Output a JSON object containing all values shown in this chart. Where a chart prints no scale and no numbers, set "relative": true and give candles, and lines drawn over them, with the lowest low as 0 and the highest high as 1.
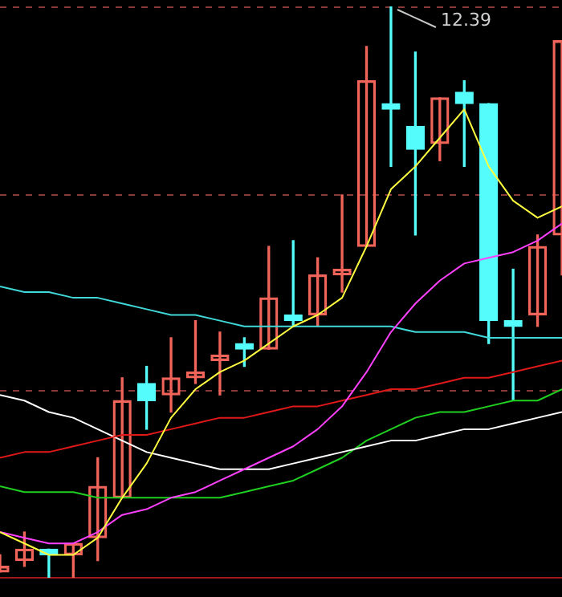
{
  "chart_data": {
    "type": "candlestick",
    "relative": true,
    "tick_labels": false,
    "categories": [
      null,
      null,
      null,
      null,
      null,
      null,
      null,
      null,
      null,
      null,
      null,
      null,
      null,
      null,
      null,
      null,
      null,
      null,
      null,
      null,
      null,
      null,
      null,
      null
    ],
    "ohlc": [
      [
        0.01,
        0.04,
        0.01,
        0.02
      ],
      [
        0.03,
        0.08,
        0.02,
        0.05
      ],
      [
        0.05,
        0.05,
        0,
        0.04
      ],
      [
        0.04,
        0.06,
        0,
        0.06
      ],
      [
        0.07,
        0.21,
        0.03,
        0.16
      ],
      [
        0.14,
        0.35,
        0.14,
        0.31
      ],
      [
        0.34,
        0.37,
        0.26,
        0.31
      ],
      [
        0.32,
        0.42,
        0.29,
        0.35
      ],
      [
        0.35,
        0.45,
        0.34,
        0.36
      ],
      [
        0.38,
        0.43,
        0.32,
        0.39
      ],
      [
        0.41,
        0.42,
        0.37,
        0.4
      ],
      [
        0.4,
        0.58,
        0.4,
        0.49
      ],
      [
        0.46,
        0.59,
        0.44,
        0.45
      ],
      [
        0.46,
        0.56,
        0.44,
        0.53
      ],
      [
        0.53,
        0.67,
        0.5,
        0.54
      ],
      [
        0.58,
        0.93,
        0.58,
        0.87
      ],
      [
        0.83,
        1,
        0.72,
        0.82
      ],
      [
        0.79,
        0.92,
        0.6,
        0.75
      ],
      [
        0.76,
        0.84,
        0.73,
        0.84
      ],
      [
        0.85,
        0.87,
        0.72,
        0.83
      ],
      [
        0.83,
        0.83,
        0.41,
        0.45
      ],
      [
        0.45,
        0.54,
        0.31,
        0.44
      ],
      [
        0.46,
        0.6,
        0.44,
        0.58
      ],
      [
        0.6,
        0.94,
        0.53,
        0.94
      ]
    ],
    "colors": [
      "#f0645a",
      "#f0645a",
      "#54fcfc",
      "#f0645a",
      "#f0645a",
      "#f0645a",
      "#54fcfc",
      "#f0645a",
      "#f0645a",
      "#f0645a",
      "#54fcfc",
      "#f0645a",
      "#54fcfc",
      "#f0645a",
      "#f0645a",
      "#f0645a",
      "#54fcfc",
      "#54fcfc",
      "#f0645a",
      "#54fcfc",
      "#54fcfc",
      "#54fcfc",
      "#f0645a",
      "#f0645a"
    ],
    "series": [
      {
        "type": "line",
        "color": "#ffff40",
        "values": [
          0.08,
          0.06,
          0.04,
          0.04,
          0.07,
          0.14,
          0.2,
          0.28,
          0.33,
          0.36,
          0.38,
          0.41,
          0.44,
          0.46,
          0.49,
          0.58,
          0.68,
          0.72,
          0.77,
          0.82,
          0.72,
          0.66,
          0.63,
          0.65
        ]
      },
      {
        "type": "line",
        "color": "#ff40ff",
        "values": [
          0.08,
          0.07,
          0.06,
          0.06,
          0.08,
          0.11,
          0.12,
          0.14,
          0.15,
          0.17,
          0.19,
          0.21,
          0.23,
          0.26,
          0.3,
          0.36,
          0.43,
          0.48,
          0.52,
          0.55,
          0.56,
          0.57,
          0.59,
          0.62
        ]
      },
      {
        "type": "line",
        "color": "#40d8d8",
        "values": [
          0.51,
          0.5,
          0.5,
          0.49,
          0.49,
          0.48,
          0.47,
          0.46,
          0.46,
          0.45,
          0.44,
          0.44,
          0.44,
          0.44,
          0.44,
          0.44,
          0.44,
          0.43,
          0.43,
          0.43,
          0.42,
          0.42,
          0.42,
          0.42
        ]
      },
      {
        "type": "line",
        "color": "#e01818",
        "values": [
          0.21,
          0.22,
          0.22,
          0.23,
          0.24,
          0.25,
          0.25,
          0.26,
          0.27,
          0.28,
          0.28,
          0.29,
          0.3,
          0.3,
          0.31,
          0.32,
          0.33,
          0.33,
          0.34,
          0.35,
          0.35,
          0.36,
          0.37,
          0.38
        ]
      },
      {
        "type": "line",
        "color": "#ffffff",
        "values": [
          0.32,
          0.31,
          0.29,
          0.28,
          0.26,
          0.24,
          0.22,
          0.21,
          0.2,
          0.19,
          0.19,
          0.19,
          0.2,
          0.21,
          0.22,
          0.23,
          0.24,
          0.24,
          0.25,
          0.26,
          0.26,
          0.27,
          0.28,
          0.29
        ]
      },
      {
        "type": "line",
        "color": "#20d020",
        "values": [
          0.16,
          0.15,
          0.15,
          0.15,
          0.14,
          0.14,
          0.14,
          0.14,
          0.14,
          0.14,
          0.15,
          0.16,
          0.17,
          0.19,
          0.21,
          0.24,
          0.26,
          0.28,
          0.29,
          0.29,
          0.3,
          0.31,
          0.31,
          0.33
        ]
      }
    ],
    "ref_lines": [
      {
        "axis": "y",
        "value": 1,
        "color": "#8b3a3a",
        "line_style": "dashed"
      },
      {
        "axis": "y",
        "value": 0.67,
        "color": "#8b3a3a",
        "line_style": "dashed"
      },
      {
        "axis": "y",
        "value": 0.33,
        "color": "#8b3a3a",
        "line_style": "dashed"
      }
    ],
    "annotations": [
      {
        "text": "12.39",
        "y": 1
      }
    ]
  }
}
